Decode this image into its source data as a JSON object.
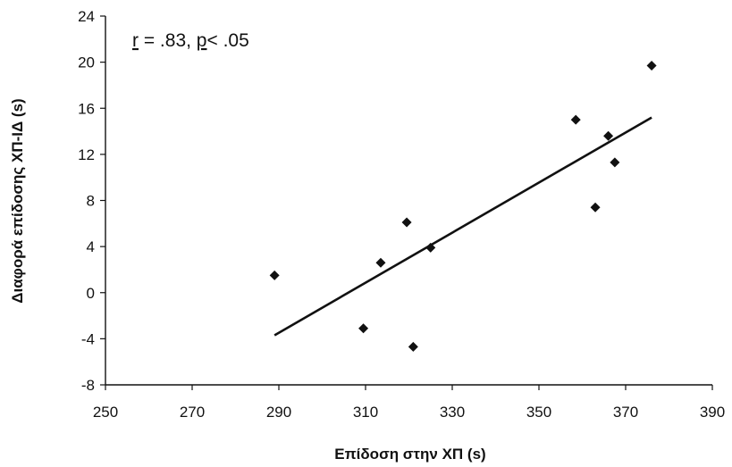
{
  "chart_data": {
    "type": "scatter",
    "xlabel": "Επίδοση στην ΧΠ (s)",
    "ylabel": "Διαφορά επίδοσης ΧΠ-ΙΔ (s)",
    "xlim": [
      250,
      390
    ],
    "ylim": [
      -8,
      24
    ],
    "xticks": [
      250,
      270,
      290,
      310,
      330,
      350,
      370,
      390
    ],
    "yticks": [
      -8,
      -4,
      0,
      4,
      8,
      12,
      16,
      20,
      24
    ],
    "grid": false,
    "annotation": {
      "r_letter": "r",
      "r_text": " = .83, ",
      "p_letter": "p",
      "p_text": "< .05"
    },
    "points": [
      {
        "x": 289,
        "y": 1.5
      },
      {
        "x": 309.5,
        "y": -3.1
      },
      {
        "x": 313.5,
        "y": 2.6
      },
      {
        "x": 319.5,
        "y": 6.1
      },
      {
        "x": 321,
        "y": -4.7
      },
      {
        "x": 325,
        "y": 3.9
      },
      {
        "x": 358.5,
        "y": 15
      },
      {
        "x": 363,
        "y": 7.4
      },
      {
        "x": 366,
        "y": 13.6
      },
      {
        "x": 367.5,
        "y": 11.3
      },
      {
        "x": 376,
        "y": 19.7
      }
    ],
    "trendline": {
      "x": [
        289,
        376
      ],
      "y": [
        -3.7,
        15.2
      ]
    }
  }
}
